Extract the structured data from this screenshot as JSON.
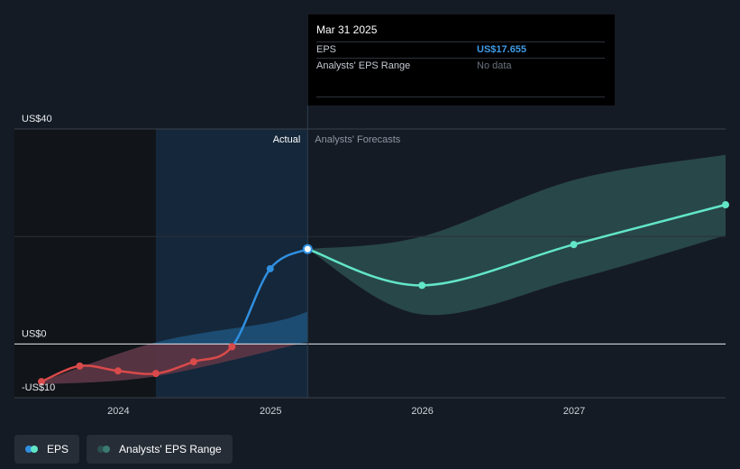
{
  "chart_data": {
    "type": "line",
    "x_ticks": [
      "2024",
      "2025",
      "2026",
      "2027"
    ],
    "y_ticks": [
      "US$40",
      "US$0",
      "-US$10"
    ],
    "ylim": [
      -10,
      40
    ],
    "sections": {
      "actual": "Actual",
      "forecast": "Analysts' Forecasts"
    },
    "series": [
      {
        "name": "EPS",
        "kind": "actual",
        "points": [
          {
            "x": "2023-06-30",
            "y": -7.0
          },
          {
            "x": "2023-09-30",
            "y": -4.1
          },
          {
            "x": "2023-12-31",
            "y": -5.0
          },
          {
            "x": "2024-03-31",
            "y": -5.5
          },
          {
            "x": "2024-06-30",
            "y": -3.3
          },
          {
            "x": "2024-09-30",
            "y": -0.5
          },
          {
            "x": "2024-12-31",
            "y": 14.0
          },
          {
            "x": "2025-03-31",
            "y": 17.655
          }
        ]
      },
      {
        "name": "EPS",
        "kind": "forecast",
        "points": [
          {
            "x": "2025-03-31",
            "y": 17.655
          },
          {
            "x": "2025-12-31",
            "y": 10.9
          },
          {
            "x": "2026-12-31",
            "y": 18.5
          },
          {
            "x": "2027-12-31",
            "y": 25.9
          }
        ]
      }
    ],
    "ranges": [
      {
        "name": "Analysts' EPS Range",
        "kind": "past",
        "low": [
          {
            "x": "2023-06-30",
            "y": -7.5
          },
          {
            "x": "2024-03-31",
            "y": -6.0
          },
          {
            "x": "2025-03-31",
            "y": 0.4
          }
        ],
        "high": [
          {
            "x": "2023-06-30",
            "y": -7.0
          },
          {
            "x": "2024-03-31",
            "y": 0.3
          },
          {
            "x": "2024-12-31",
            "y": 4.0
          },
          {
            "x": "2025-03-31",
            "y": 6.0
          }
        ]
      },
      {
        "name": "Analysts' EPS Range",
        "kind": "forecast",
        "low": [
          {
            "x": "2025-03-31",
            "y": 17.655
          },
          {
            "x": "2025-12-31",
            "y": 5.5
          },
          {
            "x": "2026-12-31",
            "y": 12.0
          },
          {
            "x": "2027-12-31",
            "y": 20.2
          }
        ],
        "high": [
          {
            "x": "2025-03-31",
            "y": 17.655
          },
          {
            "x": "2025-12-31",
            "y": 20.0
          },
          {
            "x": "2026-12-31",
            "y": 30.5
          },
          {
            "x": "2027-12-31",
            "y": 35.2
          }
        ]
      }
    ],
    "colors": {
      "eps_positive": "#2f8fe0",
      "eps_negative": "#d94a4a",
      "eps_forecast": "#62e6c8",
      "range_forecast": "#2c4f50",
      "range_past": "#1f5a86",
      "actual_shade": "#15273a"
    },
    "legend": {
      "position": "bottom-left"
    }
  },
  "tooltip": {
    "date": "Mar 31 2025",
    "rows": [
      {
        "label": "EPS",
        "value": "US$17.655"
      },
      {
        "label": "Analysts' EPS Range",
        "value": "No data"
      }
    ]
  },
  "legend": {
    "items": [
      {
        "label": "EPS",
        "color_a": "#2f8fe0",
        "color_b": "#62e6c8"
      },
      {
        "label": "Analysts' EPS Range",
        "color_a": "#2c4f50",
        "color_b": "#3b7a72"
      }
    ]
  }
}
